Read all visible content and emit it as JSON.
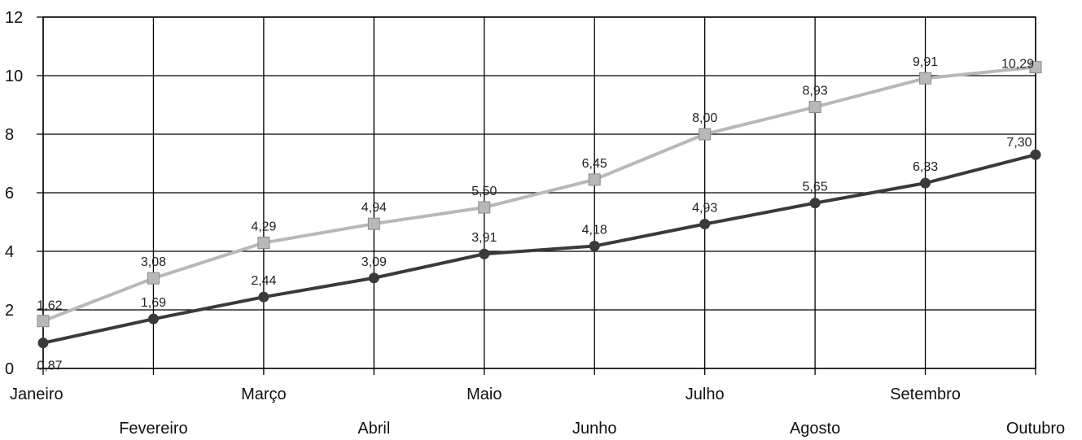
{
  "chart_data": {
    "type": "line",
    "title": "",
    "xlabel": "",
    "ylabel": "",
    "categories": [
      "Janeiro",
      "Fevereiro",
      "Março",
      "Abril",
      "Maio",
      "Junho",
      "Julho",
      "Agosto",
      "Setembro",
      "Outubro"
    ],
    "ylim": [
      0,
      12
    ],
    "yticks": [
      "0",
      "2",
      "4",
      "6",
      "8",
      "10",
      "12"
    ],
    "grid": true,
    "legend": "none",
    "series": [
      {
        "values": [
          1.62,
          3.08,
          4.29,
          4.94,
          5.5,
          6.45,
          8.0,
          8.93,
          9.91,
          10.29
        ],
        "labels": [
          "1,62",
          "3,08",
          "4,29",
          "4,94",
          "5,50",
          "6,45",
          "8,00",
          "8,93",
          "9,91",
          "10,29"
        ],
        "color": "#b8b8b8",
        "marker": "square"
      },
      {
        "values": [
          0.87,
          1.69,
          2.44,
          3.09,
          3.91,
          4.18,
          4.93,
          5.65,
          6.33,
          7.3
        ],
        "labels": [
          "0,87",
          "1,69",
          "2,44",
          "3,09",
          "3,91",
          "4,18",
          "4,93",
          "5,65",
          "6,33",
          "7,30"
        ],
        "color": "#3a3a3a",
        "marker": "circle"
      }
    ]
  }
}
